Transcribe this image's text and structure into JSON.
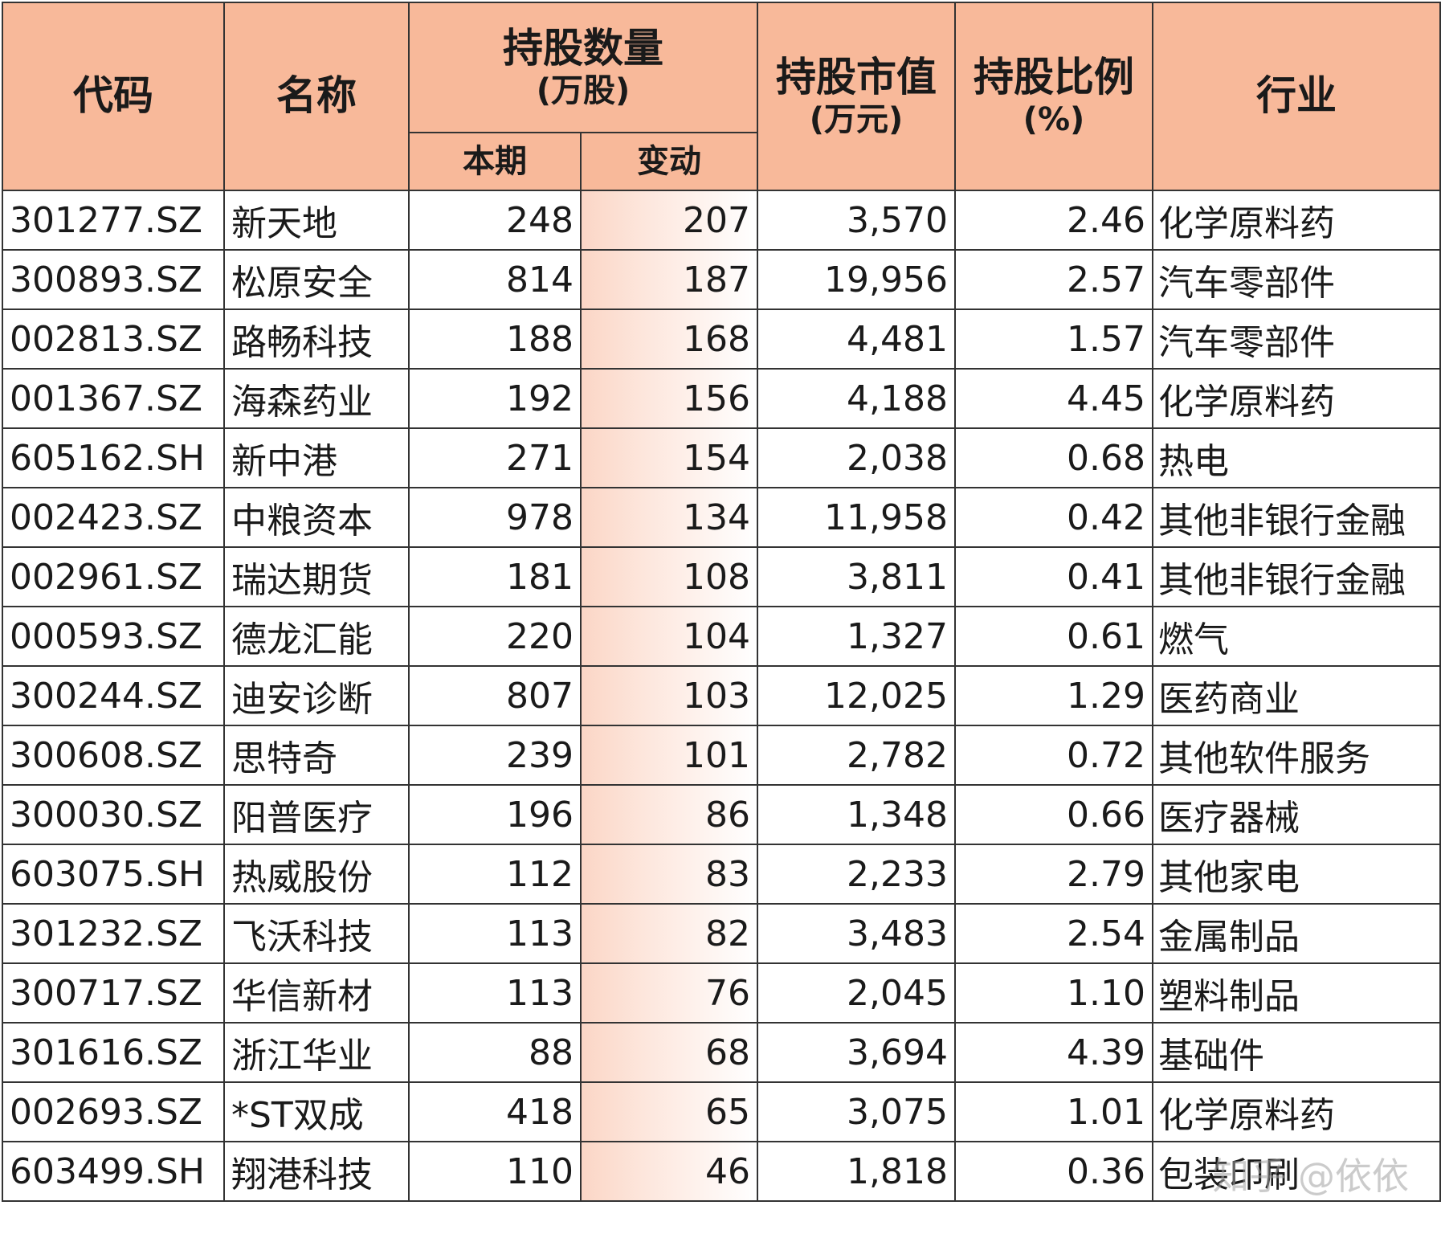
{
  "headers": {
    "code": "代码",
    "name": "名称",
    "holdings_qty": "持股数量",
    "holdings_qty_unit": "(万股)",
    "current": "本期",
    "change": "变动",
    "market_value": "持股市值",
    "market_value_unit": "(万元)",
    "ratio": "持股比例",
    "ratio_unit": "(%)",
    "industry": "行业"
  },
  "rows": [
    {
      "code": "301277.SZ",
      "name": "新天地",
      "current": "248",
      "change": "207",
      "market_value": "3,570",
      "ratio": "2.46",
      "industry": "化学原料药"
    },
    {
      "code": "300893.SZ",
      "name": "松原安全",
      "current": "814",
      "change": "187",
      "market_value": "19,956",
      "ratio": "2.57",
      "industry": "汽车零部件"
    },
    {
      "code": "002813.SZ",
      "name": "路畅科技",
      "current": "188",
      "change": "168",
      "market_value": "4,481",
      "ratio": "1.57",
      "industry": "汽车零部件"
    },
    {
      "code": "001367.SZ",
      "name": "海森药业",
      "current": "192",
      "change": "156",
      "market_value": "4,188",
      "ratio": "4.45",
      "industry": "化学原料药"
    },
    {
      "code": "605162.SH",
      "name": "新中港",
      "current": "271",
      "change": "154",
      "market_value": "2,038",
      "ratio": "0.68",
      "industry": "热电"
    },
    {
      "code": "002423.SZ",
      "name": "中粮资本",
      "current": "978",
      "change": "134",
      "market_value": "11,958",
      "ratio": "0.42",
      "industry": "其他非银行金融"
    },
    {
      "code": "002961.SZ",
      "name": "瑞达期货",
      "current": "181",
      "change": "108",
      "market_value": "3,811",
      "ratio": "0.41",
      "industry": "其他非银行金融"
    },
    {
      "code": "000593.SZ",
      "name": "德龙汇能",
      "current": "220",
      "change": "104",
      "market_value": "1,327",
      "ratio": "0.61",
      "industry": "燃气"
    },
    {
      "code": "300244.SZ",
      "name": "迪安诊断",
      "current": "807",
      "change": "103",
      "market_value": "12,025",
      "ratio": "1.29",
      "industry": "医药商业"
    },
    {
      "code": "300608.SZ",
      "name": "思特奇",
      "current": "239",
      "change": "101",
      "market_value": "2,782",
      "ratio": "0.72",
      "industry": "其他软件服务"
    },
    {
      "code": "300030.SZ",
      "name": "阳普医疗",
      "current": "196",
      "change": "86",
      "market_value": "1,348",
      "ratio": "0.66",
      "industry": "医疗器械"
    },
    {
      "code": "603075.SH",
      "name": "热威股份",
      "current": "112",
      "change": "83",
      "market_value": "2,233",
      "ratio": "2.79",
      "industry": "其他家电"
    },
    {
      "code": "301232.SZ",
      "name": "飞沃科技",
      "current": "113",
      "change": "82",
      "market_value": "3,483",
      "ratio": "2.54",
      "industry": "金属制品"
    },
    {
      "code": "300717.SZ",
      "name": "华信新材",
      "current": "113",
      "change": "76",
      "market_value": "2,045",
      "ratio": "1.10",
      "industry": "塑料制品"
    },
    {
      "code": "301616.SZ",
      "name": "浙江华业",
      "current": "88",
      "change": "68",
      "market_value": "3,694",
      "ratio": "4.39",
      "industry": "基础件"
    },
    {
      "code": "002693.SZ",
      "name": "*ST双成",
      "current": "418",
      "change": "65",
      "market_value": "3,075",
      "ratio": "1.01",
      "industry": "化学原料药"
    },
    {
      "code": "603499.SH",
      "name": "翔港科技",
      "current": "110",
      "change": "46",
      "market_value": "1,818",
      "ratio": "0.36",
      "industry": "包装印刷"
    }
  ],
  "watermark": "知乎 @依依",
  "colors": {
    "header_bg": "#f8b99a",
    "change_bg": "#fbd6c6",
    "border": "#333333"
  }
}
